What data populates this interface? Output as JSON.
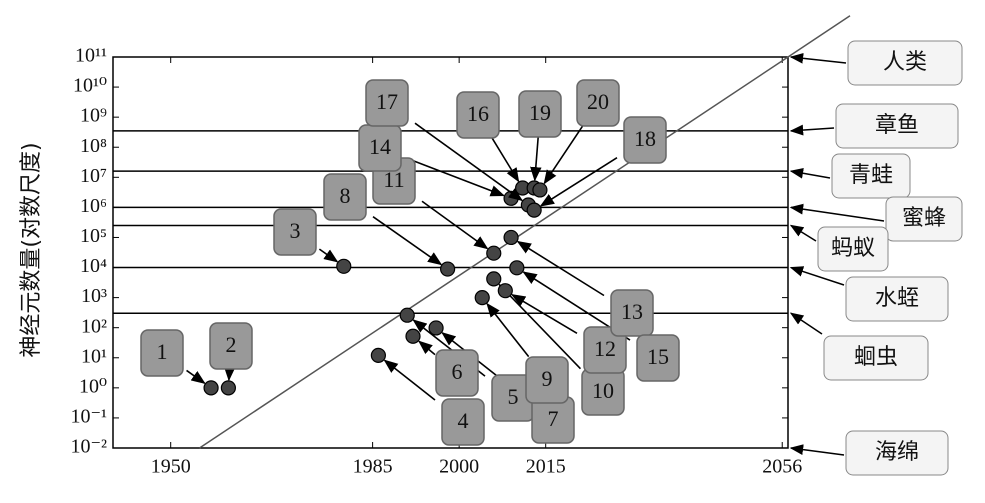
{
  "chart_data": {
    "type": "scatter",
    "ylabel": "神经元数量(对数尺度)",
    "log_y": true,
    "xlim": [
      1940,
      2057
    ],
    "xticks": [
      1950,
      1985,
      2000,
      2015,
      2056
    ],
    "ylim": [
      0.01,
      100000000000
    ],
    "yticks": [
      {
        "value": 0.01,
        "label": "10⁻²"
      },
      {
        "value": 0.1,
        "label": "10⁻¹"
      },
      {
        "value": 1,
        "label": "10⁰"
      },
      {
        "value": 10,
        "label": "10¹"
      },
      {
        "value": 100,
        "label": "10²"
      },
      {
        "value": 1000,
        "label": "10³"
      },
      {
        "value": 10000,
        "label": "10⁴"
      },
      {
        "value": 100000,
        "label": "10⁵"
      },
      {
        "value": 1000000,
        "label": "10⁶"
      },
      {
        "value": 10000000,
        "label": "10⁷"
      },
      {
        "value": 100000000,
        "label": "10⁸"
      },
      {
        "value": 1000000000,
        "label": "10⁹"
      },
      {
        "value": 10000000000,
        "label": "10¹⁰"
      },
      {
        "value": 100000000000,
        "label": "10¹¹"
      }
    ],
    "marker_color": "#444444",
    "points": [
      {
        "label": "1",
        "x": 1957,
        "y": 1
      },
      {
        "label": "2",
        "x": 1960,
        "y": 1
      },
      {
        "label": "3",
        "x": 1980,
        "y": 11000
      },
      {
        "label": "4",
        "x": 1986,
        "y": 12
      },
      {
        "label": "5",
        "x": 1991,
        "y": 260
      },
      {
        "label": "6",
        "x": 1992,
        "y": 52
      },
      {
        "label": "7",
        "x": 1996,
        "y": 98
      },
      {
        "label": "8",
        "x": 1998,
        "y": 8900
      },
      {
        "label": "9",
        "x": 2004,
        "y": 1000
      },
      {
        "label": "10",
        "x": 2006,
        "y": 4200
      },
      {
        "label": "11",
        "x": 2006,
        "y": 30000
      },
      {
        "label": "12",
        "x": 2008,
        "y": 1700
      },
      {
        "label": "13",
        "x": 2009,
        "y": 100000
      },
      {
        "label": "14",
        "x": 2009,
        "y": 2000000
      },
      {
        "label": "15",
        "x": 2010,
        "y": 9800
      },
      {
        "label": "16",
        "x": 2011,
        "y": 4400000
      },
      {
        "label": "17",
        "x": 2012,
        "y": 1200000
      },
      {
        "label": "18",
        "x": 2013,
        "y": 810000
      },
      {
        "label": "19",
        "x": 2013,
        "y": 4400000
      },
      {
        "label": "20",
        "x": 2014,
        "y": 3800000
      }
    ],
    "trend": {
      "x": [
        1955,
        2057
      ],
      "values": [
        0.01,
        100000000000
      ]
    },
    "annotations": [
      {
        "text": "人类",
        "value": 100000000000
      },
      {
        "text": "章鱼",
        "value": 350000000
      },
      {
        "text": "青蛙",
        "value": 16000000
      },
      {
        "text": "蜜蜂",
        "value": 1000000
      },
      {
        "text": "蚂蚁",
        "value": 250000
      },
      {
        "text": "水蛭",
        "value": 10000
      },
      {
        "text": "蛔虫",
        "value": 302
      },
      {
        "text": "海绵",
        "value": 0.01
      }
    ]
  }
}
